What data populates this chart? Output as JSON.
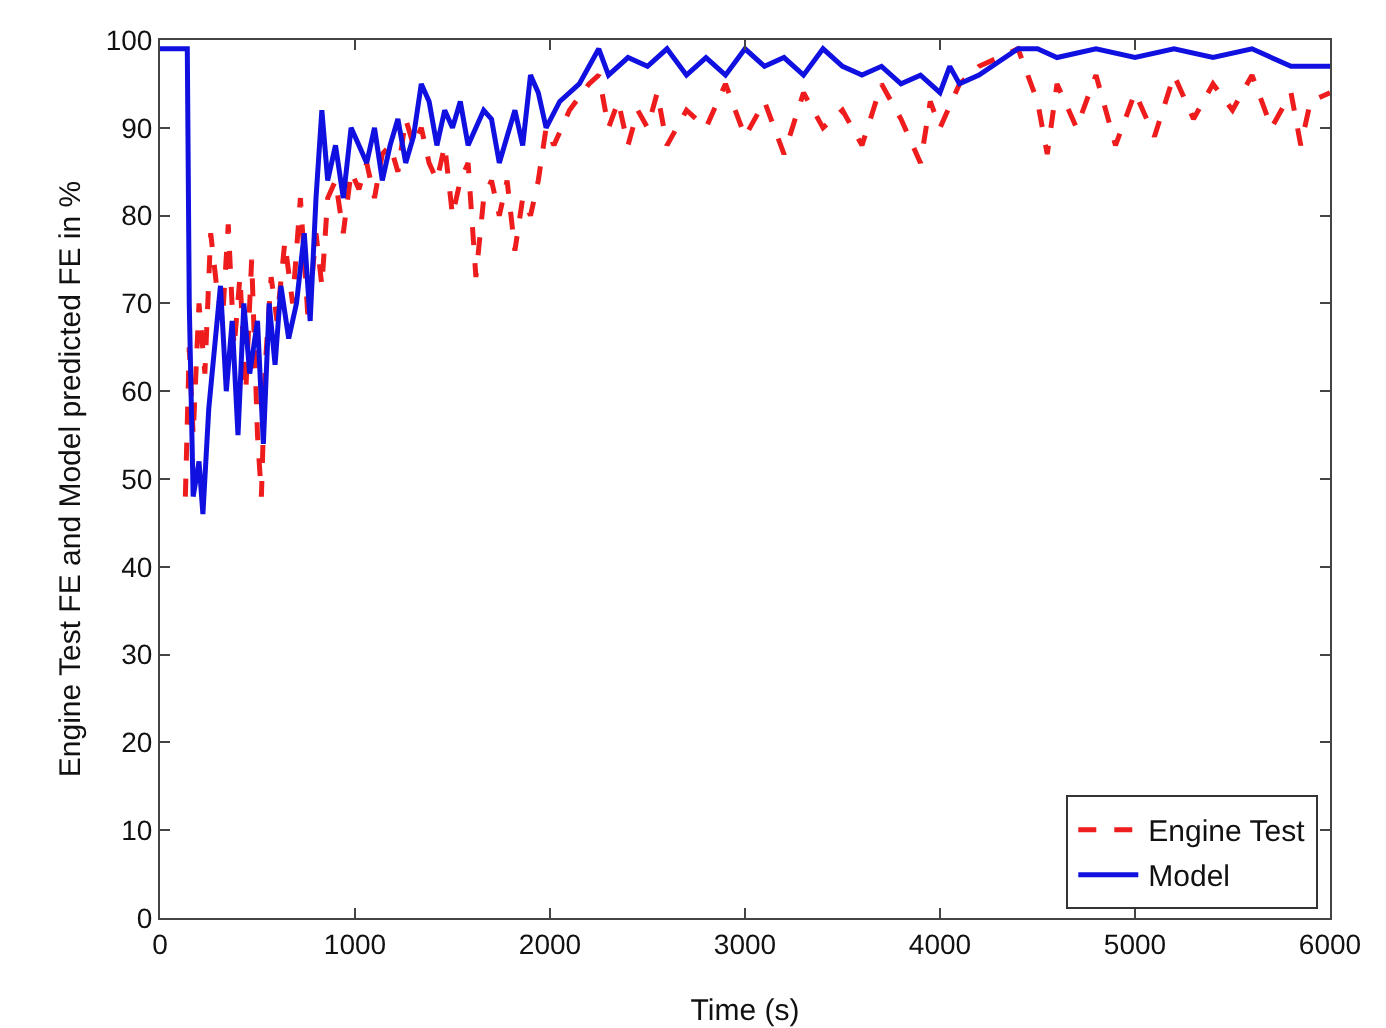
{
  "chart_data": {
    "type": "line",
    "xlabel": "Time (s)",
    "ylabel": "Engine Test FE and Model predicted FE in %",
    "xlim": [
      0,
      6000
    ],
    "ylim": [
      0,
      100
    ],
    "xticks": [
      0,
      1000,
      2000,
      3000,
      4000,
      5000,
      6000
    ],
    "yticks": [
      0,
      10,
      20,
      30,
      40,
      50,
      60,
      70,
      80,
      90,
      100
    ],
    "grid": false,
    "legend": "bottom right",
    "marker": "none",
    "series": [
      {
        "name": "Engine Test",
        "color": "#ee1c1c",
        "line_style": "dashed",
        "x": [
          130,
          150,
          170,
          200,
          230,
          260,
          290,
          320,
          350,
          380,
          410,
          440,
          470,
          500,
          520,
          540,
          570,
          600,
          640,
          680,
          720,
          760,
          800,
          830,
          860,
          900,
          940,
          980,
          1020,
          1060,
          1100,
          1140,
          1180,
          1220,
          1260,
          1300,
          1340,
          1380,
          1420,
          1460,
          1500,
          1540,
          1580,
          1620,
          1660,
          1700,
          1740,
          1780,
          1820,
          1860,
          1900,
          1940,
          1980,
          2020,
          2100,
          2200,
          2250,
          2300,
          2350,
          2400,
          2450,
          2500,
          2550,
          2600,
          2700,
          2800,
          2900,
          3000,
          3100,
          3200,
          3300,
          3400,
          3500,
          3600,
          3700,
          3800,
          3900,
          3950,
          4000,
          4100,
          4200,
          4300,
          4400,
          4500,
          4550,
          4600,
          4700,
          4800,
          4900,
          5000,
          5100,
          5200,
          5300,
          5400,
          5500,
          5600,
          5700,
          5800,
          5850,
          5900,
          6000
        ],
        "values": [
          48,
          65,
          55,
          70,
          62,
          78,
          72,
          68,
          79,
          65,
          73,
          60,
          75,
          55,
          48,
          63,
          73,
          68,
          77,
          70,
          82,
          68,
          78,
          72,
          82,
          84,
          78,
          85,
          83,
          86,
          82,
          87,
          88,
          85,
          91,
          88,
          90,
          86,
          84,
          88,
          80,
          84,
          86,
          73,
          82,
          84,
          80,
          84,
          76,
          82,
          80,
          84,
          90,
          88,
          92,
          95,
          96,
          90,
          93,
          88,
          92,
          90,
          94,
          88,
          92,
          90,
          95,
          89,
          93,
          87,
          94,
          90,
          92,
          88,
          95,
          91,
          86,
          93,
          90,
          95,
          97,
          98,
          99,
          93,
          87,
          95,
          90,
          96,
          88,
          94,
          89,
          96,
          91,
          95,
          92,
          96,
          90,
          94,
          88,
          93,
          94
        ]
      },
      {
        "name": "Model",
        "color": "#1010e0",
        "line_style": "solid",
        "x": [
          0,
          130,
          140,
          150,
          170,
          200,
          220,
          250,
          280,
          310,
          340,
          370,
          400,
          430,
          460,
          500,
          530,
          560,
          590,
          620,
          660,
          700,
          740,
          770,
          800,
          830,
          860,
          900,
          940,
          980,
          1020,
          1060,
          1100,
          1140,
          1180,
          1220,
          1260,
          1300,
          1340,
          1380,
          1420,
          1460,
          1500,
          1540,
          1580,
          1620,
          1660,
          1700,
          1740,
          1780,
          1820,
          1860,
          1900,
          1940,
          1980,
          2050,
          2150,
          2250,
          2300,
          2400,
          2500,
          2600,
          2700,
          2800,
          2900,
          3000,
          3100,
          3200,
          3300,
          3400,
          3500,
          3600,
          3700,
          3800,
          3900,
          4000,
          4050,
          4100,
          4200,
          4400,
          4500,
          4600,
          4800,
          5000,
          5200,
          5400,
          5600,
          5800,
          6000
        ],
        "values": [
          99,
          99,
          99,
          70,
          48,
          52,
          46,
          58,
          65,
          72,
          60,
          68,
          55,
          70,
          62,
          68,
          54,
          70,
          63,
          72,
          66,
          70,
          78,
          68,
          82,
          92,
          84,
          88,
          82,
          90,
          88,
          86,
          90,
          84,
          88,
          91,
          86,
          89,
          95,
          93,
          88,
          92,
          90,
          93,
          88,
          90,
          92,
          91,
          86,
          89,
          92,
          88,
          96,
          94,
          90,
          93,
          95,
          99,
          96,
          98,
          97,
          99,
          96,
          98,
          96,
          99,
          97,
          98,
          96,
          99,
          97,
          96,
          97,
          95,
          96,
          94,
          97,
          95,
          96,
          99,
          99,
          98,
          99,
          98,
          99,
          98,
          99,
          97,
          97
        ]
      }
    ]
  }
}
